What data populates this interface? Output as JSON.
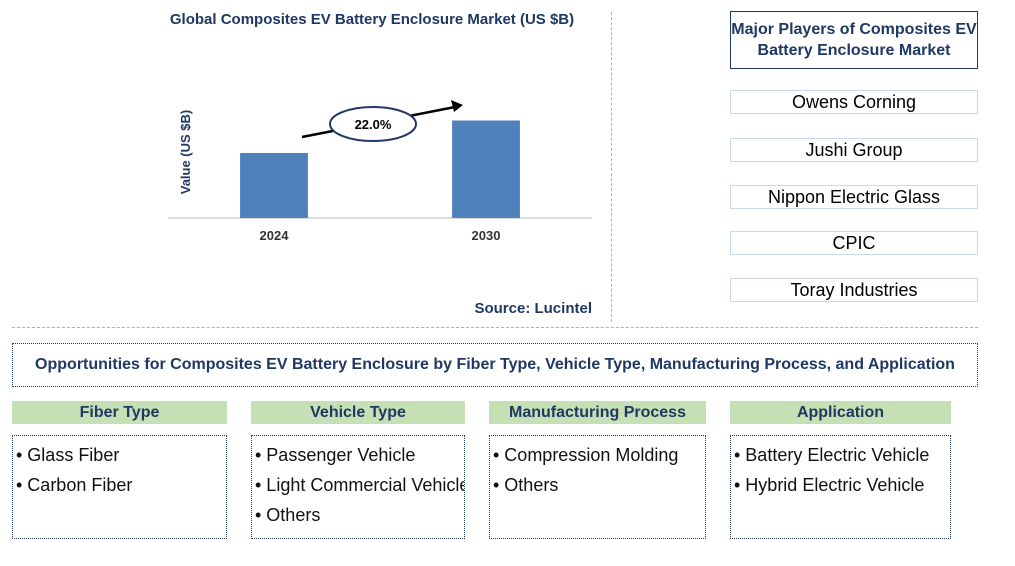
{
  "chart_data": {
    "type": "bar",
    "title": "Global Composites EV Battery Enclosure Market (US $B)",
    "ylabel": "Value (US $B)",
    "categories": [
      "2024",
      "2030"
    ],
    "values": [
      1.0,
      1.5
    ],
    "color": "#4f81bd",
    "ylim": [
      0,
      2
    ],
    "annotation": "22.0%",
    "source": "Source: Lucintel"
  },
  "players": {
    "title": "Major Players of Composites EV Battery Enclosure Market",
    "items": [
      "Owens Corning",
      "Jushi Group",
      "Nippon Electric Glass",
      "CPIC",
      "Toray Industries"
    ]
  },
  "opportunities": {
    "title": "Opportunities for Composites EV Battery Enclosure by Fiber Type, Vehicle Type, Manufacturing Process, and Application",
    "columns": [
      {
        "header": "Fiber Type",
        "items": [
          "• Glass Fiber",
          "• Carbon Fiber"
        ]
      },
      {
        "header": "Vehicle Type",
        "items": [
          "• Passenger Vehicle",
          "• Light Commercial Vehicle",
          "• Others"
        ]
      },
      {
        "header": "Manufacturing Process",
        "items": [
          "• Compression Molding",
          "• Others"
        ]
      },
      {
        "header": "Application",
        "items": [
          "• Battery Electric Vehicle",
          "• Hybrid Electric Vehicle"
        ]
      }
    ]
  }
}
